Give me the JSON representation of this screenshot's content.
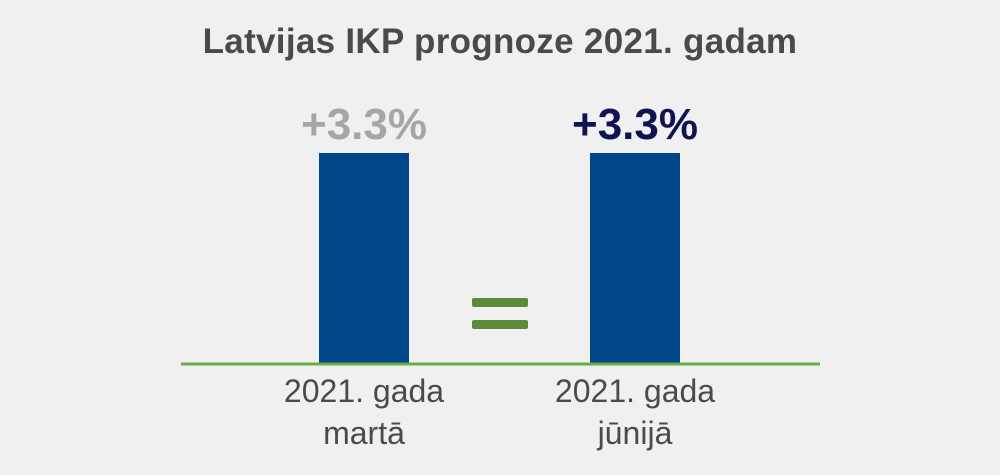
{
  "chart_data": {
    "type": "bar",
    "title": "Latvijas IKP prognoze 2021. gadam",
    "categories": [
      {
        "line1": "2021. gada",
        "line2": "martā"
      },
      {
        "line1": "2021. gada",
        "line2": "jūnijā"
      }
    ],
    "values": [
      3.3,
      3.3
    ],
    "value_labels": [
      "+3.3%",
      "+3.3%"
    ],
    "ylim": [
      0,
      3.3
    ],
    "grid": false,
    "bar_color": "#00468b",
    "axis_color": "#6aac46",
    "label_colors": [
      "#a6a6a6",
      "#0f1450"
    ],
    "comparison_symbol": "equals-sign-icon",
    "comparison_color": "#5a8a3a"
  }
}
